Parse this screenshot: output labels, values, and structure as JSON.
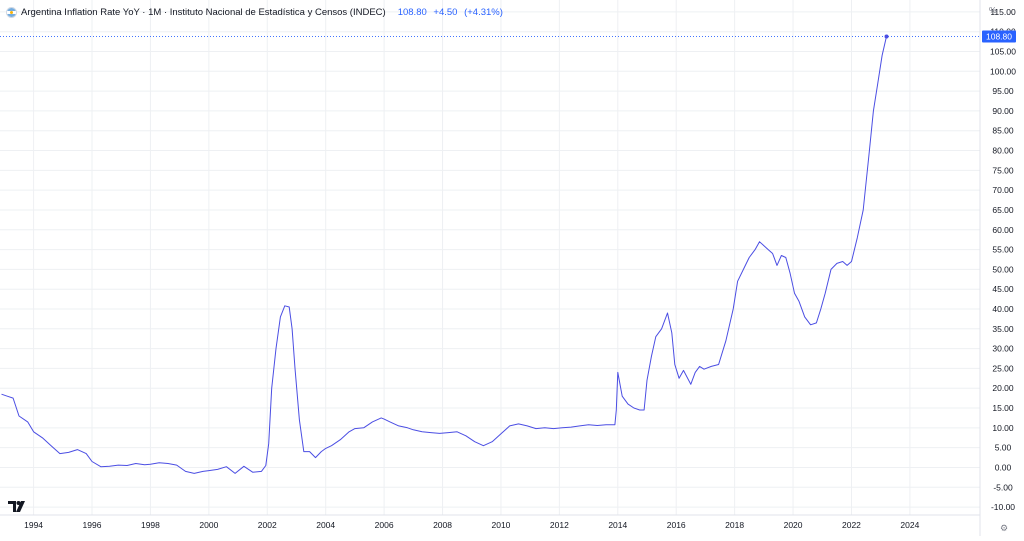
{
  "header": {
    "title": "Argentina Inflation Rate YoY · 1M · Instituto Nacional de Estadística y Censos (INDEC)",
    "last_value": "108.80",
    "change": "+4.50",
    "change_pct": "(+4.31%)"
  },
  "axis": {
    "unit": "%"
  },
  "colors": {
    "line": "#4b4ee3",
    "price_label_bg": "#2962ff",
    "grid": "#eef0f3"
  },
  "chart_data": {
    "type": "line",
    "title": "Argentina Inflation Rate YoY · 1M · Instituto Nacional de Estadística y Censos (INDEC)",
    "xlabel": "",
    "ylabel": "%",
    "xlim": [
      1992.85,
      2026.4
    ],
    "ylim": [
      -12,
      118
    ],
    "x_ticks": [
      1994,
      1996,
      1998,
      2000,
      2002,
      2004,
      2006,
      2008,
      2010,
      2012,
      2014,
      2016,
      2018,
      2020,
      2022,
      2024
    ],
    "y_ticks": [
      -10,
      -5,
      0,
      5,
      10,
      15,
      20,
      25,
      30,
      35,
      40,
      45,
      50,
      55,
      60,
      65,
      70,
      75,
      80,
      85,
      90,
      95,
      100,
      105,
      110,
      115
    ],
    "grid": true,
    "last_value_label": "108.80",
    "series": [
      {
        "x": [
          1992.9,
          1993.1,
          1993.3,
          1993.5,
          1993.8,
          1994.0,
          1994.3,
          1994.6,
          1994.9,
          1995.2,
          1995.5,
          1995.8,
          1996.0,
          1996.3,
          1996.6,
          1996.9,
          1997.2,
          1997.5,
          1997.8,
          1998.0,
          1998.3,
          1998.6,
          1998.9,
          1999.2,
          1999.5,
          1999.8,
          2000.0,
          2000.3,
          2000.6,
          2000.9,
          2001.2,
          2001.5,
          2001.8,
          2001.95,
          2002.05,
          2002.15,
          2002.3,
          2002.45,
          2002.6,
          2002.75,
          2002.85,
          2002.95,
          2003.1,
          2003.25,
          2003.45,
          2003.65,
          2003.85,
          2004.0,
          2004.2,
          2004.5,
          2004.8,
          2005.0,
          2005.3,
          2005.6,
          2005.9,
          2006.0,
          2006.2,
          2006.5,
          2006.8,
          2007.0,
          2007.3,
          2007.6,
          2007.9,
          2008.2,
          2008.5,
          2008.8,
          2009.1,
          2009.4,
          2009.7,
          2010.0,
          2010.3,
          2010.6,
          2010.9,
          2011.2,
          2011.5,
          2011.8,
          2012.1,
          2012.4,
          2012.7,
          2013.0,
          2013.3,
          2013.6,
          2013.9,
          2013.95,
          2014.0,
          2014.15,
          2014.35,
          2014.55,
          2014.75,
          2014.9,
          2015.0,
          2015.15,
          2015.3,
          2015.5,
          2015.7,
          2015.85,
          2015.95,
          2016.1,
          2016.25,
          2016.5,
          2016.65,
          2016.8,
          2016.95,
          2017.2,
          2017.45,
          2017.7,
          2017.95,
          2018.1,
          2018.3,
          2018.5,
          2018.7,
          2018.85,
          2019.0,
          2019.15,
          2019.3,
          2019.45,
          2019.6,
          2019.75,
          2019.9,
          2020.05,
          2020.2,
          2020.4,
          2020.6,
          2020.8,
          2020.95,
          2021.1,
          2021.3,
          2021.5,
          2021.7,
          2021.85,
          2022.0,
          2022.2,
          2022.4,
          2022.6,
          2022.75,
          2022.9,
          2023.05,
          2023.2
        ],
        "y": [
          18.5,
          18.0,
          17.5,
          13.0,
          11.5,
          9.0,
          7.5,
          5.5,
          3.5,
          3.8,
          4.5,
          3.5,
          1.5,
          0.2,
          0.3,
          0.6,
          0.5,
          1.0,
          0.7,
          0.8,
          1.2,
          1.0,
          0.6,
          -1.0,
          -1.5,
          -1.0,
          -0.8,
          -0.5,
          0.2,
          -1.5,
          0.3,
          -1.2,
          -1.0,
          0.5,
          6.0,
          20.0,
          30.0,
          38.0,
          40.8,
          40.5,
          35.0,
          25.0,
          12.0,
          4.0,
          4.0,
          2.5,
          4.0,
          4.8,
          5.5,
          7.0,
          9.0,
          9.8,
          10.0,
          11.5,
          12.5,
          12.2,
          11.5,
          10.5,
          10.0,
          9.5,
          9.0,
          8.8,
          8.6,
          8.8,
          9.0,
          8.0,
          6.5,
          5.5,
          6.5,
          8.5,
          10.5,
          11.0,
          10.5,
          9.8,
          10.0,
          9.8,
          10.0,
          10.2,
          10.5,
          10.8,
          10.6,
          10.8,
          10.8,
          14.5,
          24.0,
          18.0,
          16.0,
          15.0,
          14.5,
          14.5,
          22.0,
          28.0,
          33.0,
          35.0,
          39.0,
          34.0,
          26.0,
          22.5,
          24.5,
          21.0,
          24.0,
          25.5,
          24.8,
          25.5,
          26.0,
          32.0,
          40.0,
          47.0,
          50.0,
          53.0,
          55.0,
          57.0,
          56.0,
          55.0,
          54.0,
          51.0,
          53.5,
          53.0,
          49.0,
          44.0,
          42.0,
          38.0,
          36.0,
          36.5,
          40.0,
          44.0,
          50.0,
          51.5,
          52.0,
          51.0,
          52.0,
          58.0,
          65.0,
          79.0,
          90.0,
          97.0,
          104.0,
          108.8
        ]
      }
    ]
  }
}
